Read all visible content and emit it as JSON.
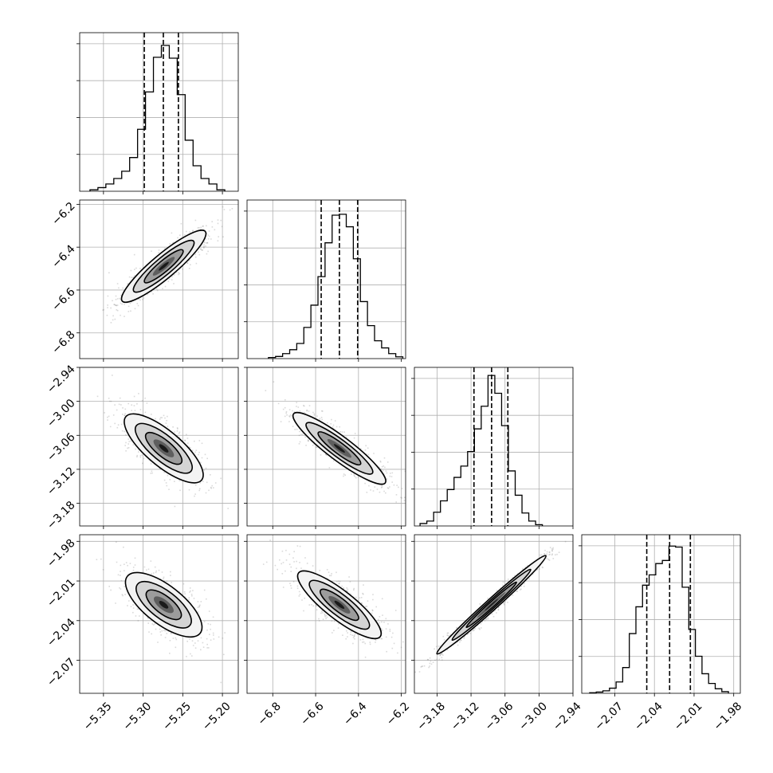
{
  "chart_data": {
    "type": "corner",
    "grid": true,
    "parameters": [
      {
        "range": [
          -5.38,
          -5.18
        ],
        "ticks": [
          -5.35,
          -5.3,
          -5.25,
          -5.2
        ],
        "tick_labels": [
          "−5.35",
          "−5.30",
          "−5.25",
          "−5.20"
        ],
        "quantiles": [
          -5.2985,
          -5.2745,
          -5.2555
        ],
        "hist_edges": [
          -5.367,
          -5.357,
          -5.347,
          -5.337,
          -5.327,
          -5.317,
          -5.307,
          -5.297,
          -5.287,
          -5.277,
          -5.267,
          -5.257,
          -5.247,
          -5.237,
          -5.227,
          -5.217,
          -5.207,
          -5.197
        ],
        "hist_counts": [
          8,
          20,
          40,
          70,
          110,
          185,
          340,
          545,
          735,
          800,
          730,
          530,
          280,
          140,
          70,
          40,
          8
        ],
        "hist_ymax": 870
      },
      {
        "range": [
          -6.92,
          -6.18
        ],
        "ticks": [
          -6.8,
          -6.6,
          -6.4,
          -6.2
        ],
        "tick_labels": [
          "−6.8",
          "−6.6",
          "−6.4",
          "−6.2"
        ],
        "quantiles": [
          -6.574,
          -6.489,
          -6.404
        ],
        "hist_edges": [
          -6.82,
          -6.787,
          -6.754,
          -6.721,
          -6.688,
          -6.655,
          -6.622,
          -6.589,
          -6.556,
          -6.523,
          -6.49,
          -6.457,
          -6.424,
          -6.391,
          -6.358,
          -6.325,
          -6.292,
          -6.259,
          -6.226,
          -6.193
        ],
        "hist_counts": [
          6,
          12,
          28,
          50,
          85,
          175,
          300,
          460,
          650,
          805,
          810,
          740,
          560,
          320,
          185,
          100,
          60,
          28,
          10
        ],
        "hist_ymax": 890
      },
      {
        "range": [
          -3.22,
          -2.94
        ],
        "ticks": [
          -3.18,
          -3.12,
          -3.06,
          -3.0,
          -2.94
        ],
        "tick_labels": [
          "−3.18",
          "−3.12",
          "−3.06",
          "−3.00",
          "−2.94"
        ],
        "quantiles": [
          -3.1148,
          -3.0837,
          -3.055
        ],
        "hist_edges": [
          -3.21,
          -3.198,
          -3.186,
          -3.174,
          -3.162,
          -3.15,
          -3.138,
          -3.126,
          -3.114,
          -3.102,
          -3.09,
          -3.078,
          -3.066,
          -3.054,
          -3.042,
          -3.03,
          -3.018,
          -3.006,
          -2.994
        ],
        "hist_counts": [
          15,
          30,
          85,
          155,
          225,
          300,
          370,
          460,
          600,
          740,
          930,
          820,
          620,
          340,
          190,
          80,
          30,
          8
        ],
        "hist_ymax": 980
      },
      {
        "range": [
          -2.095,
          -1.975
        ],
        "ticks": [
          -2.07,
          -2.04,
          -2.01,
          -1.98
        ],
        "tick_labels": [
          "−2.07",
          "−2.04",
          "−2.01",
          "−1.98"
        ],
        "quantiles": [
          -2.0458,
          -2.0285,
          -2.0128
        ],
        "hist_edges": [
          -2.089,
          -2.084,
          -2.079,
          -2.074,
          -2.069,
          -2.064,
          -2.059,
          -2.054,
          -2.049,
          -2.044,
          -2.039,
          -2.034,
          -2.029,
          -2.024,
          -2.019,
          -2.014,
          -2.009,
          -2.004,
          -1.999,
          -1.994,
          -1.989,
          -1.984
        ],
        "hist_counts": [
          3,
          6,
          12,
          25,
          55,
          125,
          290,
          420,
          525,
          575,
          630,
          645,
          715,
          710,
          515,
          310,
          180,
          95,
          48,
          22,
          8
        ],
        "hist_ymax": 770
      }
    ]
  }
}
